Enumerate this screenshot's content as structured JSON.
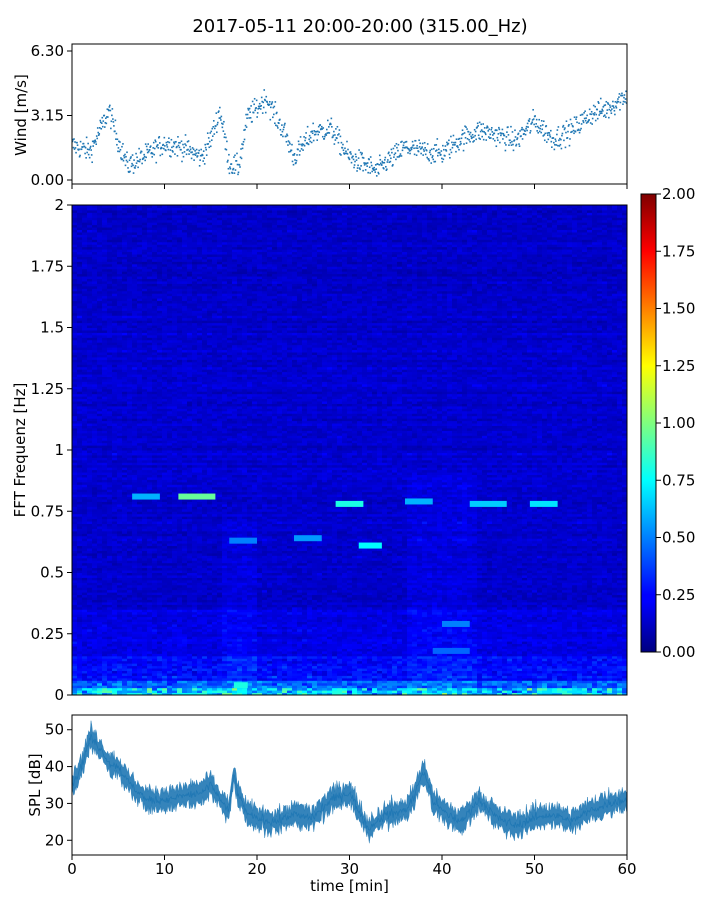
{
  "chart_data": [
    {
      "type": "scatter",
      "title": "2017-05-11 20:00-20:00 (315.00_Hz)",
      "ylabel": "Wind [m/s]",
      "xlim": [
        0,
        60
      ],
      "ylim": [
        0,
        6.3
      ],
      "yticks": [
        "0.00",
        "3.15",
        "6.30"
      ],
      "marker_color": "#1f77b4",
      "trend": {
        "x": [
          0,
          2,
          3,
          4,
          5,
          6,
          8,
          10,
          12,
          14,
          15,
          16,
          17,
          18,
          19,
          20,
          21,
          22,
          23,
          24,
          26,
          28,
          30,
          31,
          32,
          33,
          34,
          35,
          36,
          38,
          40,
          42,
          44,
          46,
          48,
          50,
          52,
          54,
          56,
          58,
          60
        ],
        "y": [
          1.7,
          1.4,
          2.4,
          3.4,
          1.9,
          0.7,
          1.2,
          1.8,
          1.6,
          1.1,
          2.0,
          3.4,
          0.8,
          0.6,
          3.1,
          3.5,
          4.0,
          3.1,
          2.3,
          1.1,
          2.3,
          2.5,
          1.1,
          0.9,
          0.7,
          0.4,
          0.9,
          1.2,
          1.6,
          1.4,
          1.3,
          2.0,
          2.4,
          2.2,
          1.9,
          2.9,
          2.0,
          2.4,
          3.2,
          3.5,
          4.2
        ]
      }
    },
    {
      "type": "heatmap",
      "ylabel": "FFT Frequenz [Hz]",
      "ylim": [
        0,
        2
      ],
      "yticks": [
        "0",
        "0.25",
        "0.5",
        "0.75",
        "1",
        "1.25",
        "1.5",
        "1.75",
        "2"
      ],
      "colormap": "jet",
      "clim": [
        0,
        2
      ],
      "colorbar_ticks": [
        "0.00",
        "0.25",
        "0.50",
        "0.75",
        "1.00",
        "1.25",
        "1.50",
        "1.75",
        "2.00"
      ],
      "bright_segments": [
        {
          "t0": 11.5,
          "t1": 15.5,
          "f": 0.81,
          "v": 0.95
        },
        {
          "t0": 6.5,
          "t1": 9.5,
          "f": 0.81,
          "v": 0.6
        },
        {
          "t0": 28.5,
          "t1": 31.5,
          "f": 0.78,
          "v": 0.8
        },
        {
          "t0": 31.0,
          "t1": 33.5,
          "f": 0.61,
          "v": 0.75
        },
        {
          "t0": 24.0,
          "t1": 27.0,
          "f": 0.64,
          "v": 0.55
        },
        {
          "t0": 36.0,
          "t1": 39.0,
          "f": 0.79,
          "v": 0.6
        },
        {
          "t0": 43.0,
          "t1": 47.0,
          "f": 0.78,
          "v": 0.65
        },
        {
          "t0": 49.5,
          "t1": 52.5,
          "f": 0.78,
          "v": 0.7
        },
        {
          "t0": 17.0,
          "t1": 20.0,
          "f": 0.63,
          "v": 0.5
        },
        {
          "t0": 40.0,
          "t1": 43.0,
          "f": 0.29,
          "v": 0.5
        },
        {
          "t0": 39.0,
          "t1": 43.0,
          "f": 0.18,
          "v": 0.45
        },
        {
          "t0": 17.5,
          "t1": 19.0,
          "f": 0.04,
          "v": 0.8
        }
      ]
    },
    {
      "type": "area",
      "xlabel": "time [min]",
      "ylabel": "SPL [dB]",
      "xlim": [
        0,
        60
      ],
      "ylim": [
        16,
        54
      ],
      "xticks": [
        "0",
        "10",
        "20",
        "30",
        "40",
        "50",
        "60"
      ],
      "yticks": [
        "20",
        "30",
        "40",
        "50"
      ],
      "line_color": "#1f77b4",
      "x": [
        0,
        1,
        2,
        3,
        4,
        5,
        6,
        8,
        10,
        12,
        14,
        15,
        16,
        17,
        17.5,
        18,
        19,
        20,
        22,
        24,
        26,
        28,
        30,
        31,
        32,
        34,
        36,
        37,
        38,
        39,
        40,
        42,
        44,
        46,
        48,
        50,
        52,
        54,
        56,
        58,
        60
      ],
      "y": [
        35,
        40,
        48,
        45,
        41,
        40,
        36,
        31,
        31,
        32,
        33,
        35,
        31,
        28,
        38,
        32,
        27,
        26,
        25,
        27,
        26,
        31,
        33,
        28,
        23,
        27,
        28,
        32,
        39,
        31,
        28,
        25,
        31,
        26,
        24,
        26,
        27,
        25,
        28,
        30,
        31
      ]
    }
  ]
}
